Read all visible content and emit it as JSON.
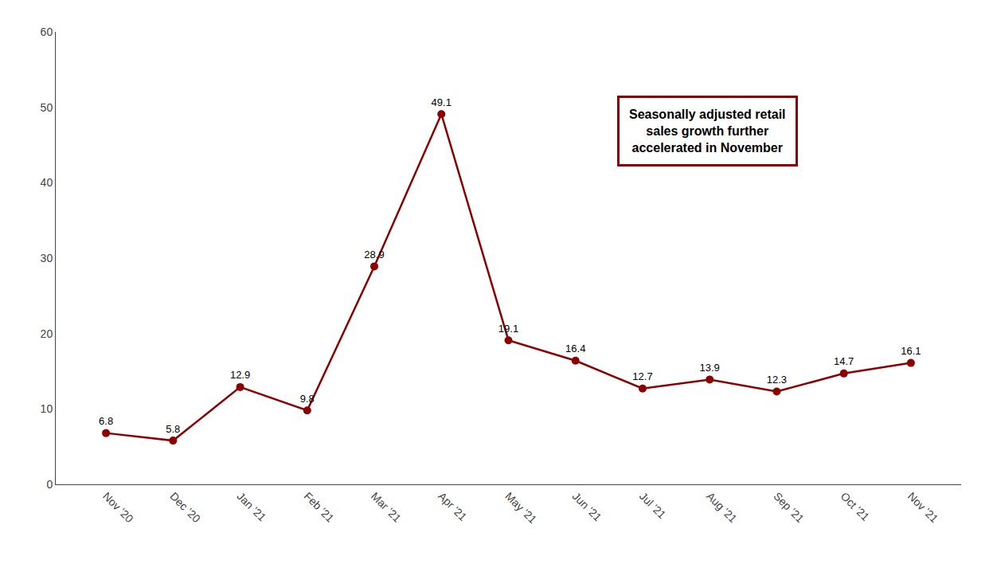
{
  "chart_data": {
    "type": "line",
    "categories": [
      "Nov '20",
      "Dec '20",
      "Jan '21",
      "Feb '21",
      "Mar '21",
      "Apr '21",
      "May '21",
      "Jun '21",
      "Jul '21",
      "Aug '21",
      "Sep '21",
      "Oct '21",
      "Nov '21"
    ],
    "values": [
      6.8,
      5.8,
      12.9,
      9.8,
      28.9,
      49.1,
      19.1,
      16.4,
      12.7,
      13.9,
      12.3,
      14.7,
      16.1
    ],
    "color": "#8B0000",
    "marker": "circle",
    "line_style": "solid",
    "ylim": [
      0,
      60
    ],
    "yticks": [
      0,
      10,
      20,
      30,
      40,
      50,
      60
    ],
    "grid": false,
    "data_labels": true,
    "annotations": [
      "Seasonally adjusted retail\nsales growth further\naccelerated in November"
    ]
  }
}
